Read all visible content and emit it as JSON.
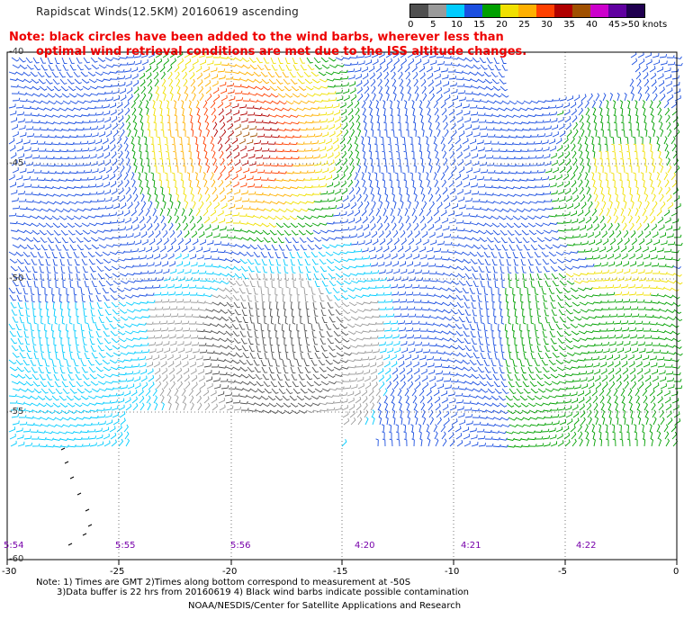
{
  "header": {
    "title": "Rapidscat Winds(12.5KM) 20160619 ascending",
    "note_line1": "Note: black circles have been added to the wind barbs, wherever less than",
    "note_line2": "optimal wind retrieval conditions are met due to the ISS altitude changes."
  },
  "legend": {
    "labels": [
      "0",
      "5",
      "10",
      "15",
      "20",
      "25",
      "30",
      "35",
      "40",
      "45",
      ">50 knots"
    ],
    "colors": [
      "#505050",
      "#9a9a9a",
      "#00ccff",
      "#1b4fe0",
      "#00a000",
      "#f0e000",
      "#ffb000",
      "#ff4000",
      "#b00000",
      "#a05000",
      "#cc00cc",
      "#6000a0",
      "#200050"
    ]
  },
  "map": {
    "lat_labels": [
      "-40",
      "-45",
      "-50",
      "-55",
      "-60"
    ],
    "lon_labels": [
      "-30",
      "-25",
      "-20",
      "-15",
      "-10",
      "-5",
      "0"
    ],
    "time_labels": [
      "5:54",
      "5:55",
      "5:56",
      "4:20",
      "4:21",
      "4:22"
    ]
  },
  "footer": {
    "line1": "Note: 1) Times are GMT 2)Times along bottom correspond to measurement at -50S",
    "line2": "3)Data buffer is 22 hrs from 20160619 4) Black wind barbs indicate possible contamination",
    "line3": "NOAA/NESDIS/Center for Satellite Applications and Research"
  }
}
